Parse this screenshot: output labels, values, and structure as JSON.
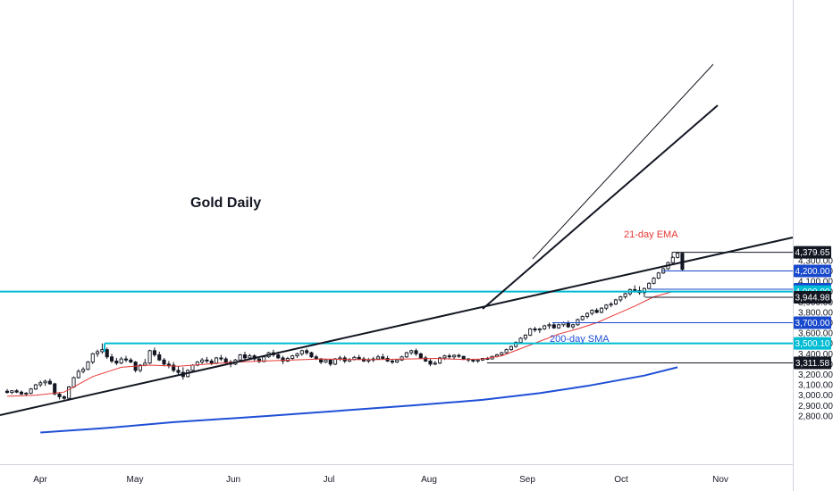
{
  "chart_data": {
    "type": "candlestick",
    "title": "Gold Daily",
    "timeframe": "Daily",
    "x_labels": [
      "Apr",
      "May",
      "Jun",
      "Jul",
      "Aug",
      "Sep",
      "Oct",
      "Nov"
    ],
    "y_ticks": [
      "4,300.00",
      "4,200.00",
      "4,100.00",
      "4,000.00",
      "3,900.00",
      "3,800.00",
      "3,700.00",
      "3,600.00",
      "3,500.00",
      "3,400.00",
      "3,300.00",
      "3,200.00",
      "3,100.00",
      "3,000.00",
      "2,900.00",
      "2,800.00"
    ],
    "ylim": [
      2720,
      4430
    ],
    "price_levels": [
      {
        "label": "4,379.65",
        "value": 4379.65,
        "color": "#131722",
        "style": "price"
      },
      {
        "label": "4,200.00",
        "value": 4200.0,
        "color": "#1848cc",
        "style": "resistance"
      },
      {
        "label": "4,022.80",
        "value": 4022.8,
        "color": "#1848cc",
        "style": "support"
      },
      {
        "label": "4,000.00",
        "value": 4000.0,
        "color": "#00bcd4",
        "style": "key"
      },
      {
        "label": "3,944.98",
        "value": 3944.98,
        "color": "#131722",
        "style": "low"
      },
      {
        "label": "3,700.00",
        "value": 3700.0,
        "color": "#1848cc",
        "style": "support"
      },
      {
        "label": "3,500.10",
        "value": 3500.1,
        "color": "#00bcd4",
        "style": "prior-high"
      },
      {
        "label": "3,311.58",
        "value": 3311.58,
        "color": "#131722",
        "style": "low"
      }
    ],
    "indicators": [
      {
        "name": "21-day EMA",
        "color": "#e53935"
      },
      {
        "name": "200-day SMA",
        "color": "#1f4fd6"
      }
    ],
    "annotations": [
      {
        "text": "Gold Daily",
        "color": "#131722"
      },
      {
        "text": "21-day EMA",
        "color": "#e53935"
      },
      {
        "text": "200-day SMA",
        "color": "#1f4fd6"
      }
    ],
    "trendlines": [
      {
        "name": "long-term-support",
        "from": [
          "Mar",
          2890
        ],
        "to": [
          "Nov",
          3590
        ]
      },
      {
        "name": "medium-term-support",
        "from": [
          "Aug",
          3311
        ],
        "to": [
          "Oct",
          4110
        ]
      },
      {
        "name": "short-term-support",
        "from": [
          "Sep",
          3700
        ],
        "to": [
          "Oct",
          4250
        ]
      }
    ],
    "series": [
      {
        "name": "Gold",
        "values": [
          [
            3039,
            3060,
            3015,
            3027
          ],
          [
            3027,
            3050,
            3010,
            3043
          ],
          [
            3043,
            3058,
            3020,
            3030
          ],
          [
            3030,
            3045,
            3001,
            3012
          ],
          [
            3012,
            3030,
            2990,
            3020
          ],
          [
            3020,
            3070,
            3010,
            3060
          ],
          [
            3060,
            3110,
            3050,
            3100
          ],
          [
            3100,
            3140,
            3080,
            3120
          ],
          [
            3120,
            3150,
            3090,
            3135
          ],
          [
            3135,
            3160,
            3100,
            3110
          ],
          [
            3110,
            3120,
            3000,
            3012
          ],
          [
            3012,
            3030,
            2960,
            2985
          ],
          [
            2985,
            3000,
            2955,
            2970
          ],
          [
            2970,
            3090,
            2965,
            3080
          ],
          [
            3080,
            3180,
            3070,
            3170
          ],
          [
            3170,
            3250,
            3160,
            3230
          ],
          [
            3230,
            3270,
            3210,
            3250
          ],
          [
            3250,
            3330,
            3240,
            3320
          ],
          [
            3320,
            3410,
            3300,
            3400
          ],
          [
            3400,
            3440,
            3370,
            3420
          ],
          [
            3420,
            3500,
            3400,
            3440
          ],
          [
            3440,
            3460,
            3350,
            3370
          ],
          [
            3370,
            3400,
            3310,
            3330
          ],
          [
            3330,
            3360,
            3290,
            3310
          ],
          [
            3310,
            3370,
            3300,
            3350
          ],
          [
            3350,
            3380,
            3320,
            3340
          ],
          [
            3340,
            3360,
            3310,
            3320
          ],
          [
            3320,
            3330,
            3220,
            3240
          ],
          [
            3240,
            3300,
            3220,
            3290
          ],
          [
            3290,
            3350,
            3280,
            3310
          ],
          [
            3310,
            3440,
            3300,
            3430
          ],
          [
            3430,
            3460,
            3370,
            3390
          ],
          [
            3390,
            3420,
            3330,
            3340
          ],
          [
            3340,
            3360,
            3280,
            3300
          ],
          [
            3300,
            3330,
            3260,
            3290
          ],
          [
            3290,
            3320,
            3220,
            3240
          ],
          [
            3240,
            3280,
            3200,
            3220
          ],
          [
            3220,
            3270,
            3150,
            3180
          ],
          [
            3180,
            3250,
            3170,
            3240
          ],
          [
            3240,
            3300,
            3230,
            3290
          ],
          [
            3290,
            3330,
            3280,
            3320
          ],
          [
            3320,
            3360,
            3300,
            3340
          ],
          [
            3340,
            3370,
            3310,
            3330
          ],
          [
            3330,
            3350,
            3290,
            3310
          ],
          [
            3310,
            3370,
            3300,
            3360
          ],
          [
            3360,
            3390,
            3330,
            3350
          ],
          [
            3350,
            3370,
            3300,
            3320
          ],
          [
            3320,
            3340,
            3270,
            3300
          ],
          [
            3300,
            3350,
            3290,
            3340
          ],
          [
            3340,
            3400,
            3330,
            3390
          ],
          [
            3390,
            3420,
            3340,
            3360
          ],
          [
            3360,
            3400,
            3340,
            3380
          ],
          [
            3380,
            3395,
            3330,
            3350
          ],
          [
            3350,
            3360,
            3310,
            3325
          ],
          [
            3325,
            3380,
            3320,
            3370
          ],
          [
            3370,
            3420,
            3360,
            3410
          ],
          [
            3410,
            3440,
            3370,
            3390
          ],
          [
            3390,
            3420,
            3350,
            3360
          ],
          [
            3360,
            3380,
            3300,
            3330
          ],
          [
            3330,
            3370,
            3320,
            3355
          ],
          [
            3355,
            3390,
            3340,
            3380
          ],
          [
            3380,
            3410,
            3360,
            3400
          ],
          [
            3400,
            3440,
            3380,
            3430
          ],
          [
            3430,
            3450,
            3390,
            3410
          ],
          [
            3410,
            3420,
            3360,
            3370
          ],
          [
            3370,
            3390,
            3340,
            3350
          ],
          [
            3350,
            3360,
            3300,
            3320
          ],
          [
            3320,
            3350,
            3310,
            3340
          ],
          [
            3340,
            3350,
            3280,
            3300
          ],
          [
            3300,
            3360,
            3290,
            3350
          ],
          [
            3350,
            3380,
            3330,
            3360
          ],
          [
            3360,
            3380,
            3310,
            3330
          ],
          [
            3330,
            3360,
            3320,
            3345
          ],
          [
            3345,
            3380,
            3335,
            3365
          ],
          [
            3365,
            3390,
            3340,
            3350
          ],
          [
            3350,
            3370,
            3320,
            3330
          ],
          [
            3330,
            3360,
            3310,
            3340
          ],
          [
            3340,
            3370,
            3320,
            3350
          ],
          [
            3350,
            3390,
            3340,
            3370
          ],
          [
            3370,
            3400,
            3345,
            3355
          ],
          [
            3355,
            3380,
            3320,
            3330
          ],
          [
            3330,
            3350,
            3300,
            3320
          ],
          [
            3320,
            3350,
            3310,
            3340
          ],
          [
            3340,
            3380,
            3330,
            3370
          ],
          [
            3370,
            3420,
            3360,
            3410
          ],
          [
            3410,
            3440,
            3390,
            3430
          ],
          [
            3430,
            3450,
            3380,
            3400
          ],
          [
            3400,
            3410,
            3350,
            3360
          ],
          [
            3360,
            3380,
            3320,
            3330
          ],
          [
            3330,
            3350,
            3280,
            3300
          ],
          [
            3300,
            3330,
            3290,
            3310
          ],
          [
            3310,
            3370,
            3300,
            3360
          ],
          [
            3360,
            3390,
            3340,
            3380
          ],
          [
            3380,
            3400,
            3350,
            3370
          ],
          [
            3370,
            3395,
            3350,
            3385
          ],
          [
            3385,
            3400,
            3360,
            3375
          ],
          [
            3375,
            3380,
            3340,
            3350
          ],
          [
            3350,
            3360,
            3320,
            3340
          ],
          [
            3340,
            3350,
            3315,
            3330
          ],
          [
            3330,
            3345,
            3312,
            3340
          ],
          [
            3340,
            3360,
            3330,
            3355
          ],
          [
            3355,
            3370,
            3340,
            3350
          ],
          [
            3350,
            3380,
            3345,
            3375
          ],
          [
            3375,
            3400,
            3365,
            3390
          ],
          [
            3390,
            3420,
            3380,
            3410
          ],
          [
            3410,
            3450,
            3400,
            3440
          ],
          [
            3440,
            3480,
            3430,
            3470
          ],
          [
            3470,
            3520,
            3460,
            3510
          ],
          [
            3510,
            3560,
            3500,
            3550
          ],
          [
            3550,
            3590,
            3530,
            3580
          ],
          [
            3580,
            3650,
            3570,
            3640
          ],
          [
            3640,
            3660,
            3610,
            3630
          ],
          [
            3630,
            3650,
            3600,
            3640
          ],
          [
            3640,
            3680,
            3630,
            3670
          ],
          [
            3670,
            3700,
            3640,
            3680
          ],
          [
            3680,
            3700,
            3640,
            3650
          ],
          [
            3650,
            3690,
            3640,
            3680
          ],
          [
            3680,
            3710,
            3660,
            3700
          ],
          [
            3700,
            3720,
            3650,
            3660
          ],
          [
            3660,
            3690,
            3640,
            3680
          ],
          [
            3680,
            3740,
            3670,
            3730
          ],
          [
            3730,
            3770,
            3720,
            3760
          ],
          [
            3760,
            3800,
            3740,
            3790
          ],
          [
            3790,
            3830,
            3770,
            3820
          ],
          [
            3820,
            3840,
            3790,
            3800
          ],
          [
            3800,
            3850,
            3790,
            3840
          ],
          [
            3840,
            3880,
            3820,
            3870
          ],
          [
            3870,
            3900,
            3850,
            3880
          ],
          [
            3880,
            3930,
            3870,
            3920
          ],
          [
            3920,
            3960,
            3900,
            3950
          ],
          [
            3950,
            3990,
            3930,
            3980
          ],
          [
            3980,
            4030,
            3960,
            4020
          ],
          [
            4020,
            4060,
            3990,
            4010
          ],
          [
            4010,
            4050,
            3970,
            3990
          ],
          [
            3990,
            4040,
            3945,
            4030
          ],
          [
            4030,
            4090,
            4020,
            4080
          ],
          [
            4080,
            4140,
            4070,
            4130
          ],
          [
            4130,
            4190,
            4120,
            4180
          ],
          [
            4180,
            4230,
            4170,
            4220
          ],
          [
            4220,
            4290,
            4210,
            4280
          ],
          [
            4280,
            4340,
            4270,
            4330
          ],
          [
            4330,
            4380,
            4320,
            4370
          ],
          [
            4370,
            4380,
            4200,
            4215
          ]
        ]
      },
      {
        "name": "21-day EMA",
        "values": [
          [
            0,
            2990
          ],
          [
            6,
            3000
          ],
          [
            12,
            3030
          ],
          [
            18,
            3180
          ],
          [
            24,
            3270
          ],
          [
            30,
            3290
          ],
          [
            36,
            3280
          ],
          [
            42,
            3300
          ],
          [
            48,
            3320
          ],
          [
            54,
            3330
          ],
          [
            60,
            3340
          ],
          [
            66,
            3350
          ],
          [
            72,
            3345
          ],
          [
            78,
            3345
          ],
          [
            84,
            3350
          ],
          [
            90,
            3355
          ],
          [
            96,
            3345
          ],
          [
            100,
            3350
          ],
          [
            104,
            3380
          ],
          [
            108,
            3450
          ],
          [
            112,
            3520
          ],
          [
            116,
            3590
          ],
          [
            120,
            3640
          ],
          [
            124,
            3700
          ],
          [
            128,
            3780
          ],
          [
            132,
            3860
          ],
          [
            136,
            3950
          ],
          [
            140,
            4000
          ]
        ]
      },
      {
        "name": "200-day SMA",
        "values": [
          [
            7,
            2640
          ],
          [
            20,
            2680
          ],
          [
            35,
            2740
          ],
          [
            55,
            2800
          ],
          [
            70,
            2850
          ],
          [
            85,
            2900
          ],
          [
            100,
            2955
          ],
          [
            112,
            3020
          ],
          [
            122,
            3090
          ],
          [
            134,
            3190
          ],
          [
            141,
            3270
          ]
        ]
      }
    ]
  }
}
